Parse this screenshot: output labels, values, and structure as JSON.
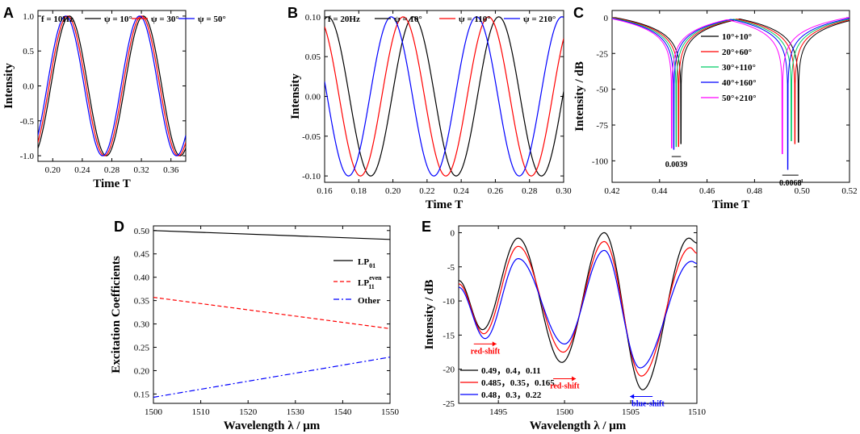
{
  "figure": {
    "panel_letters": [
      "A",
      "B",
      "C",
      "D",
      "E"
    ]
  },
  "colors": {
    "black": "#000000",
    "red": "#ff0000",
    "green": "#00cc66",
    "blue": "#0000ff",
    "magenta": "#ff00ff"
  },
  "chart_data": [
    {
      "id": "A",
      "type": "line",
      "annotation": "f = 10Hz",
      "xlabel": "Time T",
      "ylabel": "Intensity",
      "xlim": [
        0.18,
        0.38
      ],
      "ylim": [
        -1.08,
        1.08
      ],
      "xticks": [
        0.2,
        0.24,
        0.28,
        0.32,
        0.36
      ],
      "xtick_labels": [
        "0.20",
        "0.24",
        "0.28",
        "0.32",
        "0.36"
      ],
      "yticks": [
        -1.0,
        -0.5,
        0.0,
        0.5,
        1.0
      ],
      "ytick_labels": [
        "-1.0",
        "-0.5",
        "0.0",
        "0.5",
        "1.0"
      ],
      "frequency_hz": 10,
      "amplitude": 1.0,
      "series": [
        {
          "name": "ψ = 10°",
          "color": "#000000",
          "phase_deg": 10,
          "peak_t": [
            0.2225,
            0.3225
          ]
        },
        {
          "name": "ψ = 30°",
          "color": "#ff0000",
          "phase_deg": 30,
          "peak_t": [
            0.22,
            0.32
          ]
        },
        {
          "name": "ψ = 50°",
          "color": "#0000ff",
          "phase_deg": 50,
          "peak_t": [
            0.2175,
            0.3175
          ]
        }
      ]
    },
    {
      "id": "B",
      "type": "line",
      "annotation": "f = 20Hz",
      "xlabel": "Time T",
      "ylabel": "Intensity",
      "xlim": [
        0.16,
        0.3
      ],
      "ylim": [
        -0.108,
        0.108
      ],
      "xticks": [
        0.16,
        0.18,
        0.2,
        0.22,
        0.24,
        0.26,
        0.28,
        0.3
      ],
      "xtick_labels": [
        "0.16",
        "0.18",
        "0.20",
        "0.22",
        "0.24",
        "0.26",
        "0.28",
        "0.30"
      ],
      "yticks": [
        -0.1,
        -0.05,
        0.0,
        0.05,
        0.1
      ],
      "ytick_labels": [
        "-0.10",
        "-0.05",
        "0.00",
        "0.05",
        "0.10"
      ],
      "frequency_hz": 20,
      "amplitude": 0.1,
      "series": [
        {
          "name": "ψ = 10°",
          "color": "#000000",
          "phase_deg": 10,
          "peak_t": [
            0.162,
            0.212,
            0.262
          ]
        },
        {
          "name": "ψ = 110°",
          "color": "#ff0000",
          "phase_deg": 110,
          "peak_t": [
            0.156,
            0.206,
            0.256
          ]
        },
        {
          "name": "ψ = 210°",
          "color": "#0000ff",
          "phase_deg": 210,
          "peak_t": [
            0.199,
            0.249,
            0.299
          ]
        }
      ]
    },
    {
      "id": "C",
      "type": "line",
      "xlabel": "Time T",
      "ylabel": "Intensity / dB",
      "xlim": [
        0.42,
        0.52
      ],
      "ylim": [
        -115,
        5
      ],
      "xticks": [
        0.42,
        0.44,
        0.46,
        0.48,
        0.5,
        0.52
      ],
      "xtick_labels": [
        "0.42",
        "0.44",
        "0.46",
        "0.48",
        "0.50",
        "0.52"
      ],
      "yticks": [
        0,
        -25,
        -50,
        -75,
        -100
      ],
      "ytick_labels": [
        "0",
        "-25",
        "-50",
        "-75",
        "-100"
      ],
      "peak_t": 0.475,
      "series": [
        {
          "name": "10°+10°",
          "color": "#000000",
          "dips": [
            {
              "t": 0.449,
              "depth": -88
            },
            {
              "t": 0.4985,
              "depth": -87
            }
          ]
        },
        {
          "name": "20°+60°",
          "color": "#ff0000",
          "dips": [
            {
              "t": 0.448,
              "depth": -90
            },
            {
              "t": 0.497,
              "depth": -88
            }
          ]
        },
        {
          "name": "30°+110°",
          "color": "#00cc66",
          "dips": [
            {
              "t": 0.447,
              "depth": -90
            },
            {
              "t": 0.4955,
              "depth": -86
            }
          ]
        },
        {
          "name": "40°+160°",
          "color": "#0000ff",
          "dips": [
            {
              "t": 0.446,
              "depth": -92
            },
            {
              "t": 0.494,
              "depth": -106
            }
          ]
        },
        {
          "name": "50°+210°",
          "color": "#ff00ff",
          "dips": [
            {
              "t": 0.4451,
              "depth": -91
            },
            {
              "t": 0.4917,
              "depth": -95
            }
          ]
        }
      ],
      "annotations": [
        {
          "text": "0.0039",
          "x_from": 0.4451,
          "x_to": 0.449,
          "y": -97
        },
        {
          "text": "0.0068",
          "x_from": 0.4917,
          "x_to": 0.4985,
          "y": -110
        }
      ]
    },
    {
      "id": "D",
      "type": "line",
      "xlabel": "Wavelength λ / μm",
      "ylabel": "Excitation Coefficients",
      "xlim": [
        1500,
        1550
      ],
      "ylim": [
        0.13,
        0.51
      ],
      "xticks": [
        1500,
        1510,
        1520,
        1530,
        1540,
        1550
      ],
      "xtick_labels": [
        "1500",
        "1510",
        "1520",
        "1530",
        "1540",
        "1550"
      ],
      "yticks": [
        0.15,
        0.2,
        0.25,
        0.3,
        0.35,
        0.4,
        0.45,
        0.5
      ],
      "ytick_labels": [
        "0.15",
        "0.20",
        "0.25",
        "0.30",
        "0.35",
        "0.40",
        "0.45",
        "0.50"
      ],
      "series": [
        {
          "name": "LP",
          "sub": "01",
          "sup": "",
          "color": "#000000",
          "style": "solid",
          "x": [
            1500,
            1550
          ],
          "y": [
            0.5,
            0.481
          ]
        },
        {
          "name": "LP",
          "sub": "11",
          "sup": "even",
          "color": "#ff0000",
          "style": "dashed",
          "x": [
            1500,
            1550
          ],
          "y": [
            0.357,
            0.29
          ]
        },
        {
          "name": "Other",
          "sub": "",
          "sup": "",
          "color": "#0000ff",
          "style": "dashdot",
          "x": [
            1500,
            1550
          ],
          "y": [
            0.143,
            0.229
          ]
        }
      ]
    },
    {
      "id": "E",
      "type": "line",
      "xlabel": "Wavelength λ / μm",
      "ylabel": "Intensity / dB",
      "xlim": [
        1492,
        1510
      ],
      "ylim": [
        -25,
        1
      ],
      "xticks": [
        1495,
        1500,
        1505,
        1510
      ],
      "xtick_labels": [
        "1495",
        "1500",
        "1505",
        "1510"
      ],
      "yticks": [
        0,
        -5,
        -10,
        -15,
        -20,
        -25
      ],
      "ytick_labels": [
        "0",
        "-5",
        "-10",
        "-15",
        "-20",
        "-25"
      ],
      "series": [
        {
          "name": "0.49，0.4，0.11",
          "color": "#000000",
          "x": [
            1492,
            1493.8,
            1496.5,
            1499.8,
            1503.0,
            1505.9,
            1509.4,
            1510
          ],
          "y": [
            -7.0,
            -14.2,
            -0.8,
            -19.0,
            0.0,
            -23.0,
            -0.8,
            -1.5
          ]
        },
        {
          "name": "0.485，0.35，0.165",
          "color": "#ff0000",
          "x": [
            1492,
            1493.9,
            1496.5,
            1499.9,
            1503.0,
            1505.8,
            1509.5,
            1510
          ],
          "y": [
            -7.5,
            -14.8,
            -2.0,
            -17.5,
            -1.3,
            -21.0,
            -2.2,
            -3.0
          ]
        },
        {
          "name": "0.48，0.3，0.22",
          "color": "#0000ff",
          "x": [
            1492,
            1494.0,
            1496.5,
            1500.0,
            1503.0,
            1505.7,
            1509.6,
            1510
          ],
          "y": [
            -8.0,
            -15.5,
            -3.8,
            -16.3,
            -2.6,
            -19.8,
            -4.2,
            -4.5
          ]
        }
      ],
      "annotations": [
        {
          "text": "red-shift",
          "color": "#ff0000",
          "x": 1494.0,
          "y": -16.3,
          "dir": "right"
        },
        {
          "text": "red-shift",
          "color": "#ff0000",
          "x": 1500.0,
          "y": -21.4,
          "dir": "right"
        },
        {
          "text": "blue-shift",
          "color": "#0000ff",
          "x": 1505.8,
          "y": -24.0,
          "dir": "left"
        }
      ]
    }
  ]
}
